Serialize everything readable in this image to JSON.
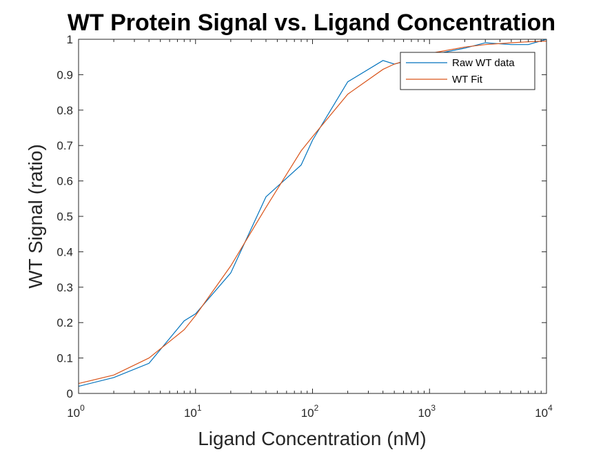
{
  "chart_data": {
    "type": "line",
    "title": "WT Protein Signal vs. Ligand Concentration",
    "xlabel": "Ligand Concentration (nM)",
    "ylabel": "WT Signal (ratio)",
    "xscale": "log",
    "xlim": [
      1,
      10000
    ],
    "ylim": [
      0,
      1
    ],
    "grid": false,
    "legend_position": "top-right",
    "x_ticks": [
      {
        "base": "10",
        "exp": "0",
        "value": 1
      },
      {
        "base": "10",
        "exp": "1",
        "value": 10
      },
      {
        "base": "10",
        "exp": "2",
        "value": 100
      },
      {
        "base": "10",
        "exp": "3",
        "value": 1000
      },
      {
        "base": "10",
        "exp": "4",
        "value": 10000
      }
    ],
    "y_ticks": [
      "0",
      "0.1",
      "0.2",
      "0.3",
      "0.4",
      "0.5",
      "0.6",
      "0.7",
      "0.8",
      "0.9",
      "1"
    ],
    "series": [
      {
        "name": "Raw WT data",
        "color": "#0072BD",
        "x": [
          1,
          2,
          4,
          8,
          10,
          20,
          40,
          80,
          100,
          200,
          400,
          500,
          1000,
          2000,
          3000,
          5000,
          7000,
          10000
        ],
        "y": [
          0.02,
          0.045,
          0.085,
          0.205,
          0.225,
          0.34,
          0.555,
          0.645,
          0.715,
          0.88,
          0.94,
          0.93,
          0.955,
          0.975,
          0.99,
          0.985,
          0.985,
          1.0
        ]
      },
      {
        "name": "WT Fit",
        "color": "#D95319",
        "x": [
          1,
          2,
          4,
          8,
          10,
          20,
          40,
          80,
          100,
          200,
          400,
          500,
          1000,
          2000,
          3000,
          5000,
          7000,
          10000
        ],
        "y": [
          0.028,
          0.052,
          0.1,
          0.18,
          0.22,
          0.36,
          0.525,
          0.685,
          0.725,
          0.845,
          0.915,
          0.93,
          0.96,
          0.978,
          0.985,
          0.99,
          0.993,
          0.995
        ]
      }
    ]
  }
}
